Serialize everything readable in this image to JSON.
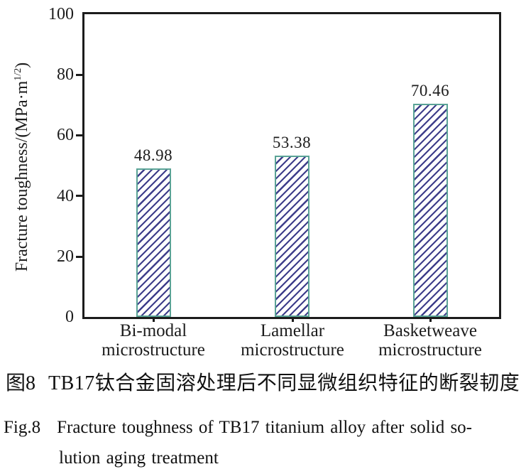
{
  "chart_data": {
    "type": "bar",
    "title": "",
    "categories": [
      "Bi-modal microstructure",
      "Lamellar microstructure",
      "Basketweave microstructure"
    ],
    "values": [
      48.98,
      53.38,
      70.46
    ],
    "bar_labels": [
      "48.98",
      "53.38",
      "70.46"
    ],
    "xlabel": "",
    "ylabel": "Fracture toughness/(MPa·m1/2)",
    "ylabel_main": "Fracture toughness/(MPa·m",
    "ylabel_sup": "1/2",
    "ylabel_close": ")",
    "ylim": [
      0,
      100
    ],
    "yticks": [
      0,
      20,
      40,
      60,
      80,
      100
    ],
    "grid": false,
    "legend": "none",
    "hatch": "/",
    "bar_border_color": "#5aa396",
    "bar_hatch_color": "#3d3d8a",
    "axis_color": "#1c1c1c"
  },
  "category_lines": [
    [
      "Bi-modal",
      "microstructure"
    ],
    [
      "Lamellar",
      "microstructure"
    ],
    [
      "Basketweave",
      "microstructure"
    ]
  ],
  "captions": {
    "cn_fig": "图8",
    "cn_text": "TB17钛合金固溶处理后不同显微组织特征的断裂韧度",
    "en_fig": "Fig.8",
    "en_line1": "Fracture toughness of TB17 titanium alloy after solid so-",
    "en_line2": "lution aging treatment"
  }
}
